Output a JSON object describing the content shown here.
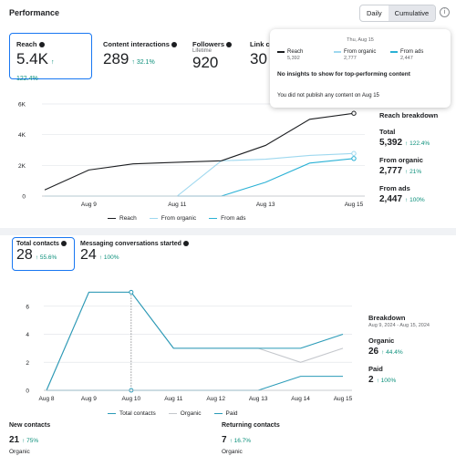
{
  "header": {
    "title": "Performance",
    "toggle": [
      "Daily",
      "Cumulative"
    ],
    "active_toggle": "Cumulative",
    "info_glyph": "i"
  },
  "metrics": [
    {
      "label": "Reach",
      "value": "5.4K",
      "change": "↑ 122.4%"
    },
    {
      "label": "Content interactions",
      "value": "289",
      "change": "↑ 32.1%"
    },
    {
      "label": "Followers",
      "sub": "Lifetime",
      "value": "920"
    },
    {
      "label": "Link cli",
      "value": "30"
    }
  ],
  "tooltip": {
    "date": "Thu, Aug 15",
    "items": [
      {
        "label": "Reach",
        "value": "5,392"
      },
      {
        "label": "From organic",
        "value": "2,777"
      },
      {
        "label": "From ads",
        "value": "2,447"
      }
    ],
    "heading": "No insights to show for top-performing content",
    "message": "You did not publish any content on Aug 15"
  },
  "reach_breakdown": {
    "title": "Reach breakdown",
    "rows": [
      {
        "label": "Total",
        "value": "5,392",
        "change": "↑ 122.4%"
      },
      {
        "label": "From organic",
        "value": "2,777",
        "change": "↑ 21%"
      },
      {
        "label": "From ads",
        "value": "2,447",
        "change": "↑ 100%"
      }
    ]
  },
  "contacts_metrics": [
    {
      "label": "Total contacts",
      "value": "28",
      "change": "↑ 55.6%"
    },
    {
      "label": "Messaging conversations started",
      "value": "24",
      "change": "↑ 100%"
    }
  ],
  "contacts_breakdown": {
    "title": "Breakdown",
    "date_range": "Aug 9, 2024 - Aug 15, 2024",
    "rows": [
      {
        "label": "Organic",
        "value": "26",
        "change": "↑ 44.4%"
      },
      {
        "label": "Paid",
        "value": "2",
        "change": "↑ 100%"
      }
    ]
  },
  "bottom": [
    {
      "label": "New contacts",
      "value": "21",
      "change": "↑ 75%",
      "sub": "Organic"
    },
    {
      "label": "Returning contacts",
      "value": "7",
      "change": "↑ 16.7%",
      "sub": "Organic"
    }
  ],
  "colors": {
    "reach": "#1c1e21",
    "organic": "#9ed8ef",
    "ads": "#2ab1d5",
    "total_contacts": "#2a9bb8",
    "contacts_organic": "#c4c7cc",
    "paid": "#2a9bb8",
    "positive": "#0a8f7a",
    "accent": "#1877f2"
  },
  "chart_data": [
    {
      "type": "line",
      "x": [
        "Aug 9",
        "Aug 10",
        "Aug 11",
        "Aug 12",
        "Aug 13",
        "Aug 14",
        "Aug 15"
      ],
      "x_tick_labels": [
        "Aug 9",
        "Aug 11",
        "Aug 13",
        "Aug 15"
      ],
      "y_tick_labels": [
        "0",
        "2K",
        "4K",
        "6K"
      ],
      "ylim": [
        0,
        6000
      ],
      "series": [
        {
          "name": "Reach",
          "x": [
            "Aug 8",
            "Aug 9",
            "Aug 10",
            "Aug 11",
            "Aug 12",
            "Aug 13",
            "Aug 14",
            "Aug 15"
          ],
          "values": [
            400,
            1700,
            2100,
            2200,
            2300,
            3300,
            5000,
            5392
          ]
        },
        {
          "name": "From organic",
          "x": [
            "Aug 8",
            "Aug 9",
            "Aug 10",
            "Aug 11",
            "Aug 12",
            "Aug 13",
            "Aug 14",
            "Aug 15"
          ],
          "values": [
            0,
            0,
            0,
            0,
            2300,
            2400,
            2650,
            2777
          ]
        },
        {
          "name": "From ads",
          "x": [
            "Aug 8",
            "Aug 9",
            "Aug 10",
            "Aug 11",
            "Aug 12",
            "Aug 13",
            "Aug 14",
            "Aug 15"
          ],
          "values": [
            0,
            0,
            0,
            0,
            0,
            900,
            2150,
            2447
          ]
        }
      ],
      "legend": "bottom",
      "grid": true
    },
    {
      "type": "line",
      "x": [
        "Aug 8",
        "Aug 9",
        "Aug 10",
        "Aug 11",
        "Aug 12",
        "Aug 13",
        "Aug 14",
        "Aug 15"
      ],
      "y_tick_labels": [
        "0",
        "2",
        "4",
        "6"
      ],
      "ylim": [
        0,
        8
      ],
      "series": [
        {
          "name": "Total contacts",
          "values": [
            0,
            7,
            7,
            3,
            3,
            3,
            3,
            4
          ]
        },
        {
          "name": "Organic",
          "values": [
            0,
            7,
            7,
            3,
            3,
            3,
            2,
            3
          ]
        },
        {
          "name": "Paid",
          "values": [
            0,
            0,
            0,
            0,
            0,
            0,
            1,
            1
          ]
        }
      ],
      "legend": "bottom",
      "grid": true
    }
  ]
}
